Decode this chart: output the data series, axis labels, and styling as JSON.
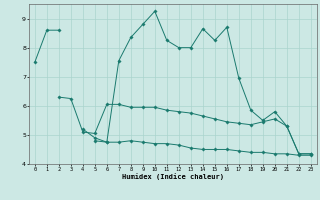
{
  "xlabel": "Humidex (Indice chaleur)",
  "background_color": "#cce8e4",
  "grid_color": "#aad4ce",
  "line_color": "#1a7a6e",
  "x": [
    0,
    1,
    2,
    3,
    4,
    5,
    6,
    7,
    8,
    9,
    10,
    11,
    12,
    13,
    14,
    15,
    16,
    17,
    18,
    19,
    20,
    21,
    22,
    23
  ],
  "line_top": [
    7.5,
    8.6,
    8.6,
    null,
    5.2,
    4.9,
    4.75,
    7.55,
    8.35,
    8.8,
    9.25,
    8.25,
    8.0,
    8.0,
    8.65,
    8.25,
    8.7,
    6.95,
    5.85,
    5.5,
    5.8,
    5.3,
    4.35,
    4.35
  ],
  "line_mid": [
    null,
    null,
    6.3,
    6.25,
    5.1,
    5.05,
    6.05,
    6.05,
    5.95,
    5.95,
    5.95,
    5.85,
    5.8,
    5.75,
    5.65,
    5.55,
    5.45,
    5.4,
    5.35,
    5.45,
    5.55,
    5.3,
    4.35,
    4.35
  ],
  "line_bot": [
    null,
    null,
    null,
    null,
    null,
    4.8,
    4.75,
    4.75,
    4.8,
    4.75,
    4.7,
    4.7,
    4.65,
    4.55,
    4.5,
    4.5,
    4.5,
    4.45,
    4.4,
    4.4,
    4.35,
    4.35,
    4.3,
    4.3
  ],
  "ylim": [
    4.0,
    9.5
  ],
  "xlim": [
    -0.5,
    23.5
  ],
  "yticks": [
    4,
    5,
    6,
    7,
    8,
    9
  ],
  "xticks": [
    0,
    1,
    2,
    3,
    4,
    5,
    6,
    7,
    8,
    9,
    10,
    11,
    12,
    13,
    14,
    15,
    16,
    17,
    18,
    19,
    20,
    21,
    22,
    23
  ],
  "figsize": [
    3.2,
    2.0
  ],
  "dpi": 100
}
